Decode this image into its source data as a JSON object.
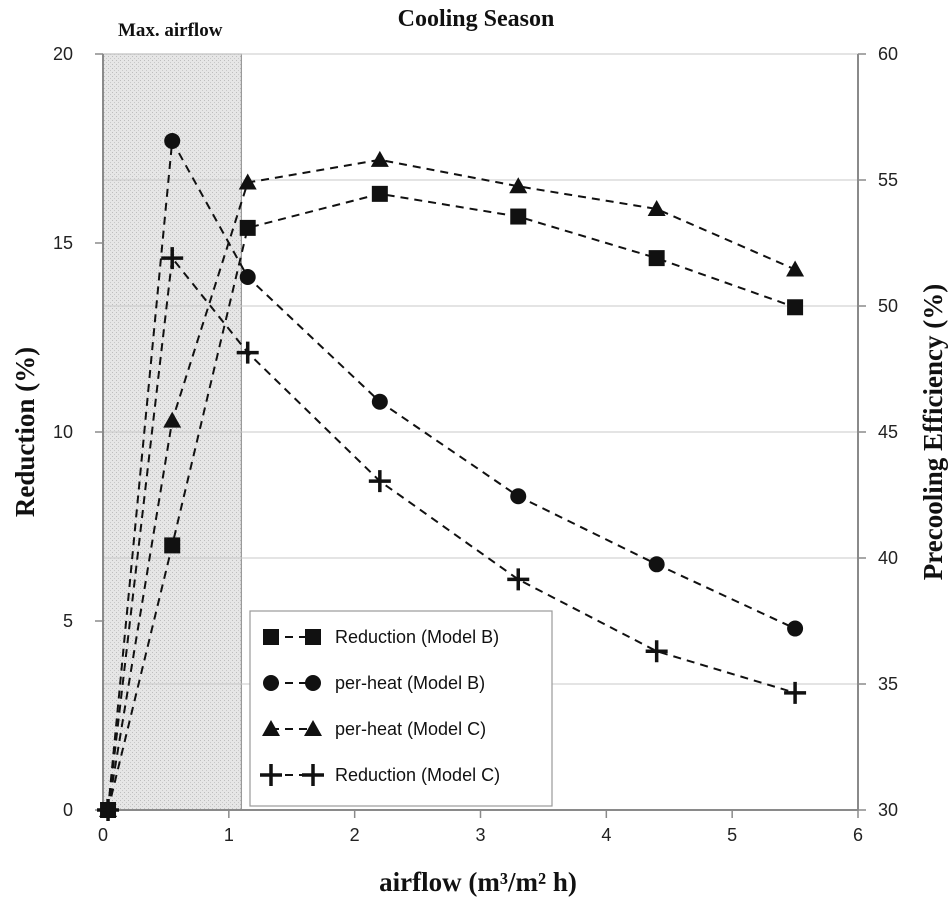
{
  "chart_data": {
    "type": "line",
    "title": "Cooling Season",
    "xlabel": "airflow (m³/m² h)",
    "ylabel": "Reduction (%)",
    "y2label": "Precooling Efficiency (%)",
    "xlim": [
      0,
      6
    ],
    "ylim": [
      0,
      20
    ],
    "y2lim": [
      30,
      60
    ],
    "xticks": [
      "0",
      "1",
      "2",
      "3",
      "4",
      "5",
      "6"
    ],
    "yticks": [
      "0",
      "5",
      "10",
      "15",
      "20"
    ],
    "y2ticks": [
      "30",
      "35",
      "40",
      "45",
      "50",
      "55",
      "60"
    ],
    "shaded_region": {
      "label": "Max. airflow",
      "x_range": [
        0,
        1.1
      ]
    },
    "series": [
      {
        "name": "Reduction (Model B)",
        "marker": "square",
        "axis": "left",
        "x": [
          0.04,
          0.55,
          1.15,
          2.2,
          3.3,
          4.4,
          5.5
        ],
        "y": [
          0,
          7.0,
          15.4,
          16.3,
          15.7,
          14.6,
          13.3
        ]
      },
      {
        "name": "per-heat (Model B)",
        "marker": "circle",
        "axis": "left",
        "x": [
          0.04,
          0.55,
          1.15,
          2.2,
          3.3,
          4.4,
          5.5
        ],
        "y": [
          0,
          17.7,
          14.1,
          10.8,
          8.3,
          6.5,
          4.8
        ]
      },
      {
        "name": "per-heat (Model C)",
        "marker": "triangle",
        "axis": "left",
        "x": [
          0.04,
          0.55,
          1.15,
          2.2,
          3.3,
          4.4,
          5.5
        ],
        "y": [
          0,
          10.3,
          16.6,
          17.2,
          16.5,
          15.9,
          14.3
        ]
      },
      {
        "name": "Reduction (Model C)",
        "marker": "plus",
        "axis": "left",
        "x": [
          0.04,
          0.55,
          1.15,
          2.2,
          3.3,
          4.4,
          5.5
        ],
        "y": [
          0,
          14.6,
          12.1,
          8.7,
          6.1,
          4.2,
          3.1
        ]
      }
    ],
    "legend_position": "bottom-center"
  }
}
